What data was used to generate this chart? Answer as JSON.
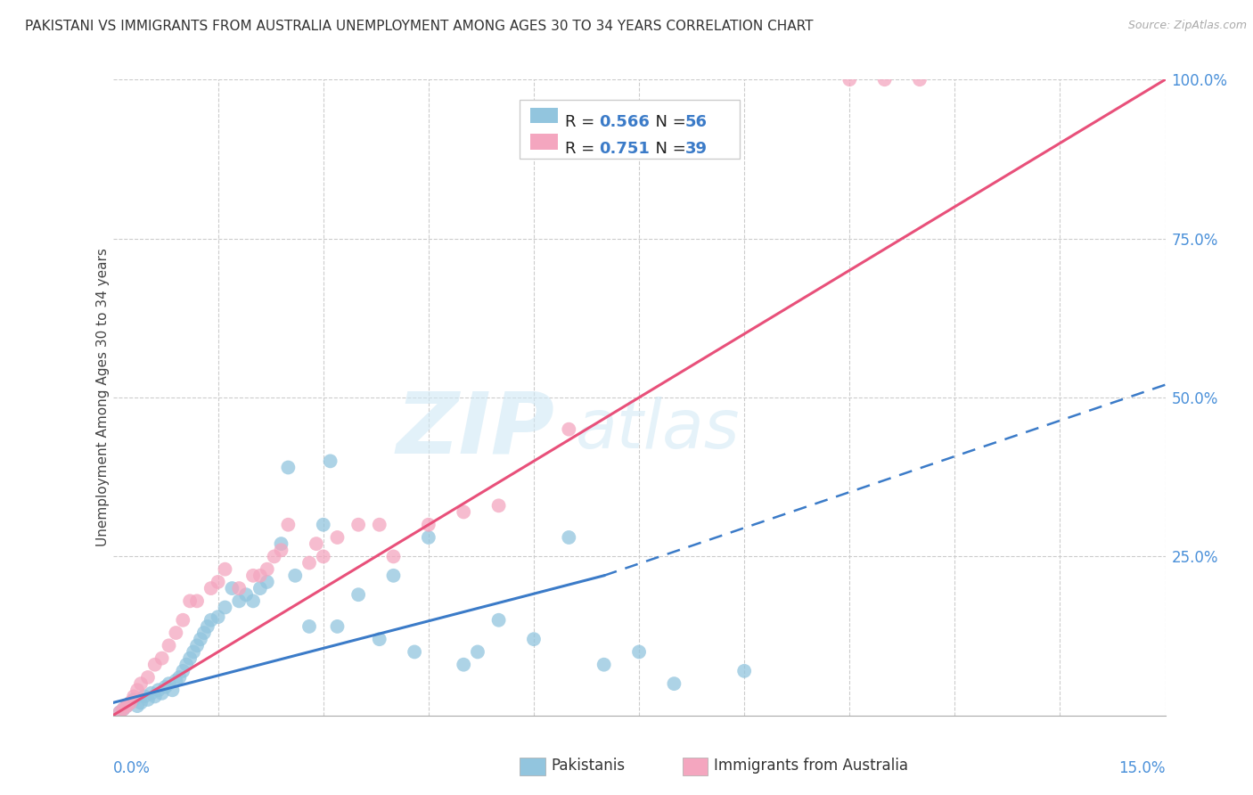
{
  "title": "PAKISTANI VS IMMIGRANTS FROM AUSTRALIA UNEMPLOYMENT AMONG AGES 30 TO 34 YEARS CORRELATION CHART",
  "source": "Source: ZipAtlas.com",
  "ylabel": "Unemployment Among Ages 30 to 34 years",
  "xmin": 0.0,
  "xmax": 15.0,
  "ymin": 0.0,
  "ymax": 100.0,
  "pakistani_R": 0.566,
  "pakistani_N": 56,
  "australia_R": 0.751,
  "australia_N": 39,
  "blue_color": "#92c5de",
  "pink_color": "#f4a6bf",
  "blue_line_color": "#3b7bc8",
  "pink_line_color": "#e8507a",
  "legend_label_1": "Pakistanis",
  "legend_label_2": "Immigrants from Australia",
  "watermark_zip": "ZIP",
  "watermark_atlas": "atlas",
  "pakistani_x": [
    0.1,
    0.15,
    0.2,
    0.25,
    0.3,
    0.35,
    0.4,
    0.45,
    0.5,
    0.55,
    0.6,
    0.65,
    0.7,
    0.75,
    0.8,
    0.85,
    0.9,
    0.95,
    1.0,
    1.05,
    1.1,
    1.15,
    1.2,
    1.25,
    1.3,
    1.35,
    1.4,
    1.5,
    1.6,
    1.7,
    1.8,
    1.9,
    2.0,
    2.1,
    2.2,
    2.4,
    2.5,
    2.6,
    2.8,
    3.0,
    3.1,
    3.2,
    3.5,
    3.8,
    4.0,
    4.3,
    4.5,
    5.0,
    5.2,
    5.5,
    6.0,
    6.5,
    7.0,
    7.5,
    8.0,
    9.0
  ],
  "pakistani_y": [
    0.5,
    1.0,
    1.5,
    2.0,
    2.5,
    1.5,
    2.0,
    3.0,
    2.5,
    3.5,
    3.0,
    4.0,
    3.5,
    4.5,
    5.0,
    4.0,
    5.5,
    6.0,
    7.0,
    8.0,
    9.0,
    10.0,
    11.0,
    12.0,
    13.0,
    14.0,
    15.0,
    15.5,
    17.0,
    20.0,
    18.0,
    19.0,
    18.0,
    20.0,
    21.0,
    27.0,
    39.0,
    22.0,
    14.0,
    30.0,
    40.0,
    14.0,
    19.0,
    12.0,
    22.0,
    10.0,
    28.0,
    8.0,
    10.0,
    15.0,
    12.0,
    28.0,
    8.0,
    10.0,
    5.0,
    7.0
  ],
  "australia_x": [
    0.1,
    0.15,
    0.2,
    0.25,
    0.3,
    0.35,
    0.4,
    0.5,
    0.6,
    0.7,
    0.8,
    0.9,
    1.0,
    1.1,
    1.2,
    1.4,
    1.5,
    1.6,
    1.8,
    2.0,
    2.1,
    2.2,
    2.3,
    2.4,
    2.5,
    3.0,
    3.5,
    4.0,
    4.5,
    5.0,
    5.5,
    6.5,
    10.5,
    11.0,
    11.5,
    3.2,
    3.8,
    2.8,
    2.9
  ],
  "australia_y": [
    0.5,
    1.0,
    1.5,
    2.0,
    3.0,
    4.0,
    5.0,
    6.0,
    8.0,
    9.0,
    11.0,
    13.0,
    15.0,
    18.0,
    18.0,
    20.0,
    21.0,
    23.0,
    20.0,
    22.0,
    22.0,
    23.0,
    25.0,
    26.0,
    30.0,
    25.0,
    30.0,
    25.0,
    30.0,
    32.0,
    33.0,
    45.0,
    100.0,
    100.0,
    100.0,
    28.0,
    30.0,
    24.0,
    27.0
  ],
  "blue_line_x0": 0.0,
  "blue_line_y0": 2.0,
  "blue_line_x1": 15.0,
  "blue_line_y1": 30.0,
  "pink_line_x0": 0.0,
  "pink_line_y0": 0.0,
  "pink_line_x1": 15.0,
  "pink_line_y1": 100.0,
  "blue_dash_x0": 7.0,
  "blue_dash_y0": 22.0,
  "blue_dash_x1": 15.0,
  "blue_dash_y1": 52.0,
  "right_yticks": [
    0,
    25,
    50,
    75,
    100
  ],
  "right_ylabels": [
    "",
    "25.0%",
    "50.0%",
    "75.0%",
    "100.0%"
  ]
}
